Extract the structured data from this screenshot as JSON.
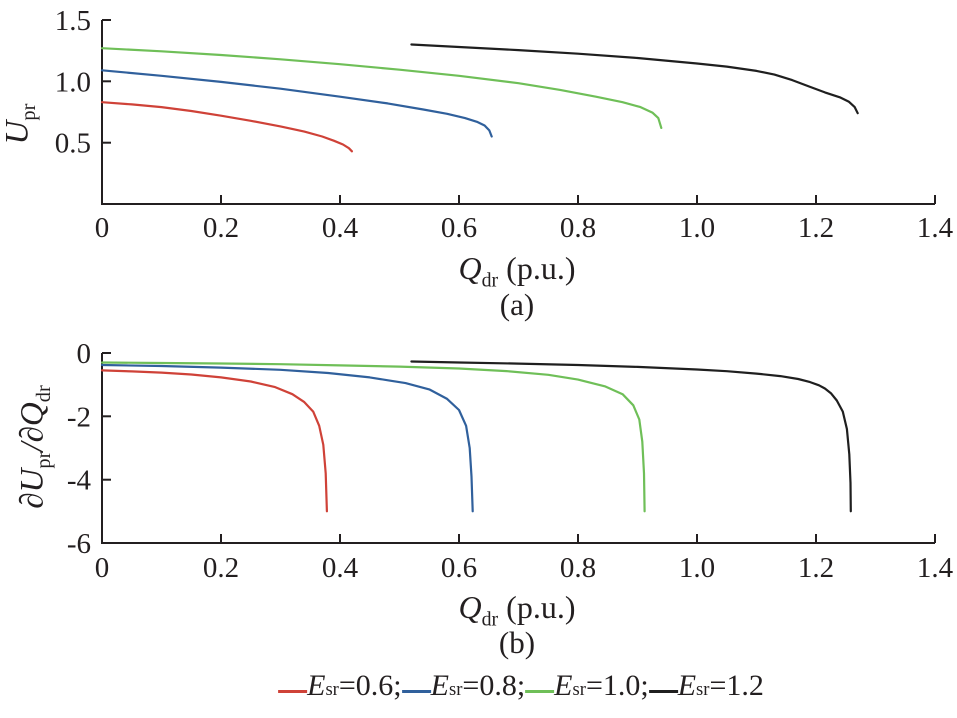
{
  "figure": {
    "background": "#ffffff",
    "text_color": "#231f20"
  },
  "colors": {
    "axis": "#231f20",
    "red": "#cf4238",
    "blue": "#30609c",
    "green": "#6fbf58",
    "black": "#1f1f1f"
  },
  "chart_data": [
    {
      "id": "a",
      "type": "line",
      "caption": "(a)",
      "xlabel": "Q_dr (p.u.)",
      "ylabel": "U_pr",
      "xlabel_parts": {
        "p1": "Q",
        "s1": "dr",
        "p2": " (p.u.)"
      },
      "ylabel_parts": {
        "p1": "U",
        "s1": "pr"
      },
      "xlim": [
        0,
        1.4
      ],
      "ylim": [
        0,
        1.5
      ],
      "grid": false,
      "xticks": {
        "values": [
          0,
          0.2,
          0.4,
          0.6,
          0.8,
          1.0,
          1.2,
          1.4
        ],
        "labels": [
          "0",
          "0.2",
          "0.4",
          "0.6",
          "0.8",
          "1.0",
          "1.2",
          "1.4"
        ]
      },
      "yticks": {
        "values": [
          0.5,
          1.0,
          1.5
        ],
        "labels": [
          "0.5",
          "1.0",
          "1.5"
        ]
      },
      "series": [
        {
          "key": "red",
          "name": "Esr=0.6",
          "color": "#cf4238",
          "points": [
            [
              0,
              0.83
            ],
            [
              0.05,
              0.812
            ],
            [
              0.1,
              0.79
            ],
            [
              0.15,
              0.758
            ],
            [
              0.2,
              0.72
            ],
            [
              0.25,
              0.678
            ],
            [
              0.3,
              0.633
            ],
            [
              0.34,
              0.59
            ],
            [
              0.37,
              0.55
            ],
            [
              0.39,
              0.515
            ],
            [
              0.405,
              0.485
            ],
            [
              0.415,
              0.455
            ],
            [
              0.42,
              0.43
            ]
          ]
        },
        {
          "key": "blue",
          "name": "Esr=0.8",
          "color": "#30609c",
          "points": [
            [
              0,
              1.09
            ],
            [
              0.1,
              1.045
            ],
            [
              0.2,
              0.995
            ],
            [
              0.3,
              0.94
            ],
            [
              0.4,
              0.875
            ],
            [
              0.48,
              0.82
            ],
            [
              0.54,
              0.77
            ],
            [
              0.58,
              0.735
            ],
            [
              0.61,
              0.7
            ],
            [
              0.63,
              0.67
            ],
            [
              0.643,
              0.64
            ],
            [
              0.651,
              0.6
            ],
            [
              0.655,
              0.55
            ]
          ]
        },
        {
          "key": "green",
          "name": "Esr=1.0",
          "color": "#6fbf58",
          "points": [
            [
              0,
              1.27
            ],
            [
              0.1,
              1.245
            ],
            [
              0.2,
              1.215
            ],
            [
              0.3,
              1.18
            ],
            [
              0.4,
              1.14
            ],
            [
              0.5,
              1.095
            ],
            [
              0.6,
              1.045
            ],
            [
              0.7,
              0.985
            ],
            [
              0.77,
              0.93
            ],
            [
              0.83,
              0.875
            ],
            [
              0.875,
              0.83
            ],
            [
              0.905,
              0.79
            ],
            [
              0.925,
              0.745
            ],
            [
              0.935,
              0.7
            ],
            [
              0.94,
              0.62
            ]
          ]
        },
        {
          "key": "black",
          "name": "Esr=1.2",
          "color": "#1f1f1f",
          "points": [
            [
              0.52,
              1.3
            ],
            [
              0.6,
              1.28
            ],
            [
              0.7,
              1.255
            ],
            [
              0.8,
              1.225
            ],
            [
              0.9,
              1.19
            ],
            [
              1.0,
              1.145
            ],
            [
              1.05,
              1.12
            ],
            [
              1.1,
              1.085
            ],
            [
              1.13,
              1.055
            ],
            [
              1.16,
              1.01
            ],
            [
              1.19,
              0.955
            ],
            [
              1.215,
              0.91
            ],
            [
              1.24,
              0.87
            ],
            [
              1.255,
              0.835
            ],
            [
              1.265,
              0.79
            ],
            [
              1.27,
              0.74
            ]
          ]
        }
      ]
    },
    {
      "id": "b",
      "type": "line",
      "caption": "(b)",
      "xlabel": "Q_dr (p.u.)",
      "ylabel": "dU_pr/dQ_dr",
      "xlabel_parts": {
        "p1": "Q",
        "s1": "dr",
        "p2": " (p.u.)"
      },
      "ylabel_parts": {
        "p1": "∂U",
        "s1": "pr",
        "p2": "/∂Q",
        "s2": "dr"
      },
      "xlim": [
        0,
        1.4
      ],
      "ylim": [
        -6,
        0
      ],
      "grid": false,
      "xticks": {
        "values": [
          0,
          0.2,
          0.4,
          0.6,
          0.8,
          1.0,
          1.2,
          1.4
        ],
        "labels": [
          "0",
          "0.2",
          "0.4",
          "0.6",
          "0.8",
          "1.0",
          "1.2",
          "1.4"
        ]
      },
      "yticks": {
        "values": [
          0,
          -2,
          -4,
          -6
        ],
        "labels": [
          "0",
          "-2",
          "-4",
          "-6"
        ]
      },
      "series": [
        {
          "key": "red",
          "name": "Esr=0.6",
          "color": "#cf4238",
          "points": [
            [
              0,
              -0.55
            ],
            [
              0.05,
              -0.58
            ],
            [
              0.1,
              -0.62
            ],
            [
              0.15,
              -0.68
            ],
            [
              0.2,
              -0.77
            ],
            [
              0.25,
              -0.9
            ],
            [
              0.29,
              -1.07
            ],
            [
              0.32,
              -1.3
            ],
            [
              0.34,
              -1.55
            ],
            [
              0.355,
              -1.85
            ],
            [
              0.365,
              -2.3
            ],
            [
              0.372,
              -2.9
            ],
            [
              0.376,
              -3.8
            ],
            [
              0.378,
              -5.0
            ]
          ]
        },
        {
          "key": "blue",
          "name": "Esr=0.8",
          "color": "#30609c",
          "points": [
            [
              0,
              -0.38
            ],
            [
              0.1,
              -0.41
            ],
            [
              0.2,
              -0.46
            ],
            [
              0.3,
              -0.53
            ],
            [
              0.38,
              -0.63
            ],
            [
              0.45,
              -0.77
            ],
            [
              0.51,
              -0.95
            ],
            [
              0.55,
              -1.15
            ],
            [
              0.58,
              -1.45
            ],
            [
              0.6,
              -1.8
            ],
            [
              0.612,
              -2.3
            ],
            [
              0.618,
              -3.0
            ],
            [
              0.621,
              -3.9
            ],
            [
              0.623,
              -5.0
            ]
          ]
        },
        {
          "key": "green",
          "name": "Esr=1.0",
          "color": "#6fbf58",
          "points": [
            [
              0,
              -0.3
            ],
            [
              0.1,
              -0.315
            ],
            [
              0.2,
              -0.33
            ],
            [
              0.3,
              -0.355
            ],
            [
              0.4,
              -0.39
            ],
            [
              0.5,
              -0.43
            ],
            [
              0.6,
              -0.49
            ],
            [
              0.68,
              -0.57
            ],
            [
              0.75,
              -0.69
            ],
            [
              0.8,
              -0.84
            ],
            [
              0.845,
              -1.05
            ],
            [
              0.875,
              -1.3
            ],
            [
              0.893,
              -1.65
            ],
            [
              0.903,
              -2.1
            ],
            [
              0.908,
              -2.8
            ],
            [
              0.911,
              -3.8
            ],
            [
              0.912,
              -5.0
            ]
          ]
        },
        {
          "key": "black",
          "name": "Esr=1.2",
          "color": "#1f1f1f",
          "points": [
            [
              0.52,
              -0.27
            ],
            [
              0.6,
              -0.3
            ],
            [
              0.7,
              -0.335
            ],
            [
              0.8,
              -0.38
            ],
            [
              0.9,
              -0.44
            ],
            [
              1.0,
              -0.52
            ],
            [
              1.05,
              -0.575
            ],
            [
              1.1,
              -0.65
            ],
            [
              1.14,
              -0.73
            ],
            [
              1.17,
              -0.82
            ],
            [
              1.19,
              -0.92
            ],
            [
              1.205,
              -1.02
            ],
            [
              1.215,
              -1.12
            ],
            [
              1.225,
              -1.27
            ],
            [
              1.235,
              -1.5
            ],
            [
              1.245,
              -1.85
            ],
            [
              1.252,
              -2.4
            ],
            [
              1.256,
              -3.2
            ],
            [
              1.258,
              -4.1
            ],
            [
              1.2585,
              -5.0
            ]
          ]
        }
      ]
    }
  ],
  "legend": {
    "items": [
      {
        "main": "E",
        "sub": "sr",
        "value": "=0.6;",
        "color": "#cf4238"
      },
      {
        "main": "E",
        "sub": "sr",
        "value": "=0.8;",
        "color": "#30609c"
      },
      {
        "main": "E",
        "sub": "sr",
        "value": "=1.0;",
        "color": "#6fbf58"
      },
      {
        "main": "E",
        "sub": "sr",
        "value": "=1.2",
        "color": "#1f1f1f"
      }
    ]
  }
}
